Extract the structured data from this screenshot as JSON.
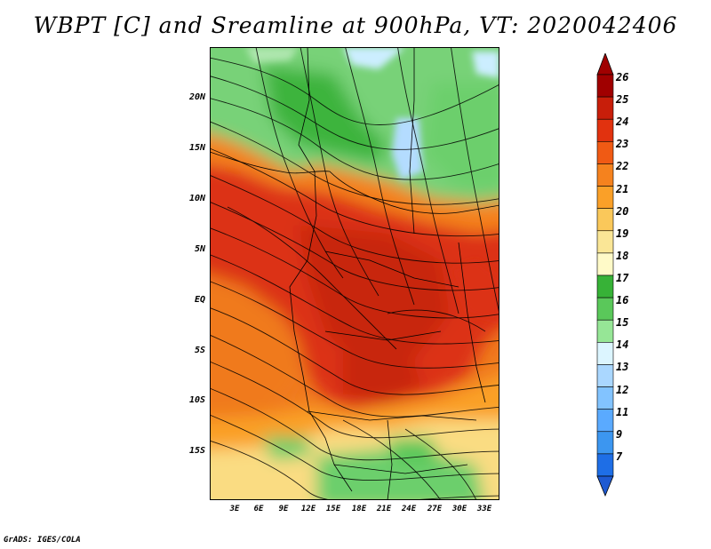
{
  "title": "WBPT [C] and Sreamline at 900hPa, VT: 2020042406",
  "footer": "GrADS: IGES/COLA",
  "map": {
    "lat_labels": [
      "20N",
      "15N",
      "10N",
      "5N",
      "EQ",
      "5S",
      "10S",
      "15S"
    ],
    "lon_labels": [
      "3E",
      "6E",
      "9E",
      "12E",
      "15E",
      "18E",
      "21E",
      "24E",
      "27E",
      "30E",
      "33E"
    ]
  },
  "colorbar": {
    "labels": [
      "26",
      "25",
      "24",
      "23",
      "22",
      "21",
      "20",
      "19",
      "18",
      "17",
      "16",
      "15",
      "14",
      "13",
      "12",
      "11",
      "9",
      "7"
    ],
    "colors": [
      "#a00000",
      "#c81e0a",
      "#e1320f",
      "#f05a14",
      "#f5821e",
      "#faa028",
      "#fac85a",
      "#fae696",
      "#fffac8",
      "#37b237",
      "#5ac85a",
      "#96e696",
      "#dcf5ff",
      "#aad7ff",
      "#82c3ff",
      "#5aaaff",
      "#3c96f0",
      "#1e6ee6"
    ],
    "arrow_top_color": "#a00000",
    "arrow_bottom_color": "#1e5ad2"
  }
}
